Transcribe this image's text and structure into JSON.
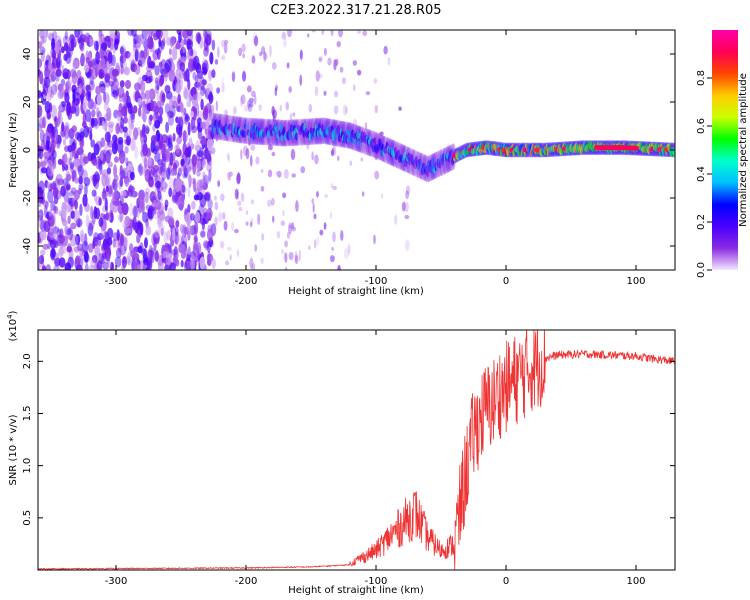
{
  "figure": {
    "title": "C2E3.2022.317.21.28.R05"
  },
  "chart_data": [
    {
      "type": "heatmap",
      "name": "spectrogram",
      "xlabel": "Height of straight line (km)",
      "ylabel": "Frequency (Hz)",
      "xlim": [
        -360,
        130
      ],
      "ylim": [
        -50,
        50
      ],
      "xticks": [
        -300,
        -200,
        -100,
        0,
        100
      ],
      "yticks": [
        -40,
        -20,
        0,
        20,
        40
      ],
      "colorbar": {
        "label": "Normalized spectral amplitude",
        "range": [
          0.0,
          1.0
        ],
        "ticks": [
          0.0,
          0.2,
          0.4,
          0.6,
          0.8
        ],
        "colors": [
          "#f3e6ff",
          "#8a2be2",
          "#4a00ff",
          "#0000ff",
          "#00bfff",
          "#00ffcc",
          "#00ff00",
          "#ccff00",
          "#ffcc00",
          "#ff4400",
          "#ff0055",
          "#ff00aa"
        ]
      },
      "features": {
        "noise_region_x": [
          -360,
          -225
        ],
        "signal_trace": {
          "x": [
            -225,
            -200,
            -170,
            -140,
            -120,
            -100,
            -80,
            -60,
            -45,
            -30,
            -15,
            0,
            30,
            60,
            90,
            130
          ],
          "y": [
            10,
            8,
            7,
            8,
            6,
            2,
            -3,
            -8,
            -4,
            0,
            1,
            0,
            0,
            1,
            1,
            0
          ]
        }
      }
    },
    {
      "type": "line",
      "name": "snr",
      "xlabel": "Height of straight line (km)",
      "ylabel": "SNR (10 * v/v)",
      "yscale_label": "(x10",
      "yscale_exp": "4",
      "xlim": [
        -360,
        130
      ],
      "ylim": [
        0,
        2.3
      ],
      "xticks": [
        -300,
        -200,
        -100,
        0,
        100
      ],
      "yticks": [
        0.5,
        1.0,
        1.5,
        2.0
      ],
      "ytick_labels": [
        "0.5",
        "1.0",
        "1.5",
        "2.0"
      ],
      "line_color": "#ee3333",
      "envelope": {
        "x": [
          -360,
          -200,
          -150,
          -120,
          -100,
          -90,
          -80,
          -70,
          -60,
          -50,
          -40,
          -35,
          -30,
          -25,
          -20,
          -15,
          -10,
          -5,
          0,
          10,
          20,
          30,
          40,
          60,
          80,
          100,
          115,
          130
        ],
        "y": [
          0.01,
          0.02,
          0.03,
          0.05,
          0.15,
          0.25,
          0.35,
          0.45,
          0.25,
          0.15,
          0.2,
          0.6,
          1.0,
          1.3,
          1.45,
          1.55,
          1.6,
          1.7,
          1.75,
          1.85,
          1.95,
          2.03,
          2.06,
          2.07,
          2.06,
          2.05,
          2.02,
          2.0
        ]
      }
    }
  ]
}
